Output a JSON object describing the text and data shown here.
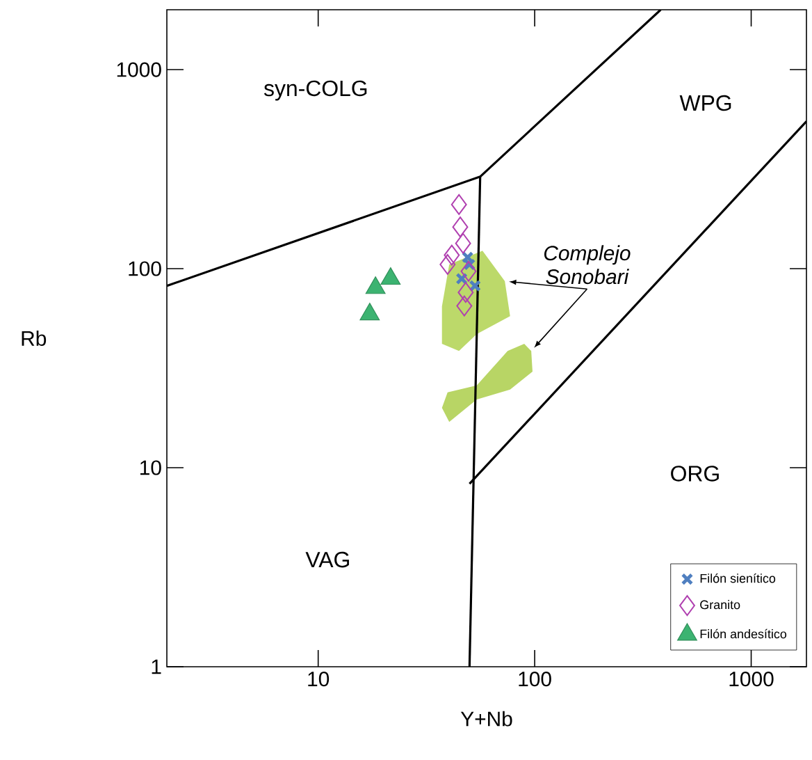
{
  "chart_data": {
    "type": "scatter",
    "xlabel": "Y+Nb",
    "ylabel": "Rb",
    "log": "xy",
    "xlim": [
      2,
      1800
    ],
    "ylim": [
      1,
      2000
    ],
    "xticks": [
      10,
      100,
      1000
    ],
    "yticks": [
      1,
      10,
      100,
      1000
    ],
    "grid": false,
    "legend": "bottom right",
    "series": [
      {
        "type": "area",
        "color": "#bcd96a",
        "x": [
          72.8,
          77,
          54,
          44.7,
          37.3,
          37.3,
          40.3,
          57.4
        ],
        "values": [
          86.5,
          57.8,
          46.9,
          38.6,
          41.9,
          64.7,
          105,
          123
        ]
      },
      {
        "type": "area",
        "color": "#b8d565",
        "x": [
          96.4,
          97.7,
          77,
          54,
          40.3,
          37.3,
          39.6,
          54,
          75,
          89.5
        ],
        "values": [
          38.6,
          30.4,
          24.7,
          22,
          17,
          20,
          23.9,
          25.9,
          38.6,
          41.9
        ]
      },
      {
        "type": "line",
        "color": "#000000",
        "x": [
          2,
          56,
          382
        ],
        "values": [
          82,
          290,
          2000
        ]
      },
      {
        "type": "line",
        "color": "#000000",
        "x": [
          56,
          50
        ],
        "values": [
          290,
          1
        ]
      },
      {
        "type": "line",
        "color": "#000000",
        "x": [
          50,
          1800
        ],
        "values": [
          8.3,
          550
        ]
      },
      {
        "name": "Filón sienítico",
        "color": "#4f7fc0",
        "marker": "cross",
        "x": [
          50,
          46,
          53,
          49
        ],
        "values": [
          105,
          89,
          82,
          114
        ]
      },
      {
        "name": "Granito",
        "color": "#b040b0",
        "marker": "diamond",
        "x": [
          44.7,
          45.3,
          46.7,
          41.4,
          39.6,
          49.5,
          48,
          47.3
        ],
        "values": [
          210,
          162,
          134,
          117,
          105,
          97,
          76,
          65
        ]
      },
      {
        "name": "Filón andesítico",
        "color": "#3cb371",
        "marker": "triangle",
        "x": [
          18.4,
          21.6,
          17.3
        ],
        "values": [
          80,
          89,
          59
        ]
      }
    ],
    "annotations": [
      "syn-COLG",
      "WPG",
      "VAG",
      "ORG",
      {
        "text": "Complejo Sonobari",
        "x": 72.8,
        "y": 86.5
      }
    ]
  }
}
